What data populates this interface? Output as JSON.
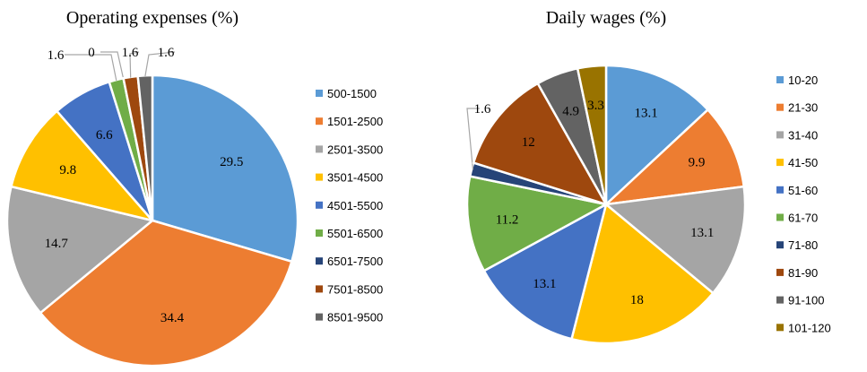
{
  "chart_data": [
    {
      "type": "pie",
      "title": "Operating expenses (%)",
      "categories": [
        "500-1500",
        "1501-2500",
        "2501-3500",
        "3501-4500",
        "4501-5500",
        "5501-6500",
        "6501-7500",
        "7501-8500",
        "8501-9500"
      ],
      "values": [
        29.5,
        34.4,
        14.7,
        9.8,
        6.6,
        1.6,
        0,
        1.6,
        1.6
      ],
      "labels": [
        "29.5",
        "34.4",
        "14.7",
        "9.8",
        "6.6",
        "1.6",
        "0",
        "1.6",
        "1.6"
      ],
      "colors": [
        "#5B9BD5",
        "#ED7D31",
        "#A5A5A5",
        "#FFC000",
        "#4472C4",
        "#70AD47",
        "#264478",
        "#9E480E",
        "#636363"
      ],
      "legend": "right"
    },
    {
      "type": "pie",
      "title": "Daily wages (%)",
      "categories": [
        "10-20",
        "21-30",
        "31-40",
        "41-50",
        "51-60",
        "61-70",
        "71-80",
        "81-90",
        "91-100",
        "101-120"
      ],
      "values": [
        13.1,
        9.9,
        13.1,
        18,
        13.1,
        11.2,
        1.6,
        12,
        4.9,
        3.3
      ],
      "labels": [
        "13.1",
        "9.9",
        "13.1",
        "18",
        "13.1",
        "11.2",
        "1.6",
        "12",
        "4.9",
        "3.3"
      ],
      "colors": [
        "#5B9BD5",
        "#ED7D31",
        "#A5A5A5",
        "#FFC000",
        "#4472C4",
        "#70AD47",
        "#264478",
        "#9E480E",
        "#636363",
        "#997300"
      ],
      "legend": "right"
    }
  ]
}
